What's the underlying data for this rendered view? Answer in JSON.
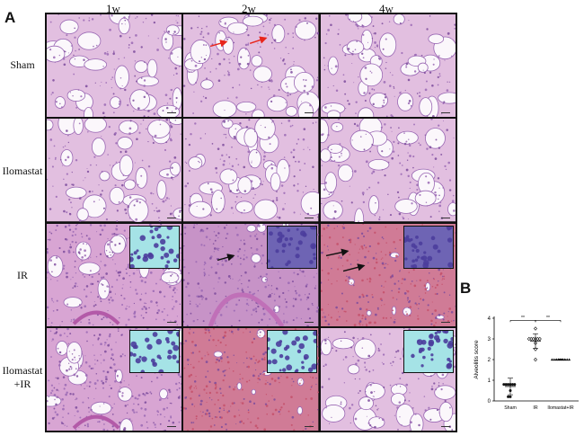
{
  "figure": {
    "panel_a_letter": "A",
    "panel_b_letter": "B",
    "columns": [
      "1w",
      "2w",
      "4w"
    ],
    "rows": [
      "Sham",
      "Ilomastat",
      "IR",
      "Ilomastat\n+IR"
    ]
  },
  "cells": [
    {
      "style": "normal",
      "inset": false,
      "arrows": "none"
    },
    {
      "style": "normal",
      "inset": false,
      "arrows": "red"
    },
    {
      "style": "normal",
      "inset": false,
      "arrows": "none"
    },
    {
      "style": "normal",
      "inset": false,
      "arrows": "none"
    },
    {
      "style": "normal",
      "inset": false,
      "arrows": "none"
    },
    {
      "style": "normal",
      "inset": false,
      "arrows": "none"
    },
    {
      "style": "inflamed",
      "inset": true,
      "arrows": "none"
    },
    {
      "style": "dense",
      "inset": true,
      "arrows": "black-one"
    },
    {
      "style": "hemorrhagic",
      "inset": true,
      "arrows": "black-two"
    },
    {
      "style": "inflamed",
      "inset": true,
      "arrows": "none"
    },
    {
      "style": "hemorrhagic",
      "inset": true,
      "arrows": "none"
    },
    {
      "style": "normal",
      "inset": true,
      "arrows": "none"
    }
  ],
  "colors": {
    "he_pink": "#f4e3ee",
    "he_purple": "#9a68b4",
    "hemorrhage": "#c4506a",
    "inset_bg": "#a5e3e6",
    "nucleus": "#4b3d9c",
    "arrow_red": "#e8251b",
    "arrow_black": "#111111"
  },
  "chart_data": {
    "type": "scatter",
    "title": "",
    "xlabel": "",
    "ylabel": "Alveolitis score",
    "categories": [
      "Sham",
      "IR",
      "Ilomastat+IR"
    ],
    "ylim": [
      0,
      4
    ],
    "yticks": [
      0,
      1,
      2,
      3,
      4
    ],
    "series": [
      {
        "values": [
          0.8,
          0.8,
          0.8,
          0.8,
          0.8,
          0.8,
          0.5,
          0.2,
          0.2
        ]
      },
      {
        "values": [
          3.5,
          3.0,
          3.0,
          3.0,
          3.0,
          3.0,
          3.0,
          2.8,
          2.5,
          2.0
        ]
      },
      {
        "values": [
          2.0,
          2.0,
          2.0,
          2.0,
          2.0,
          2.0,
          2.0,
          2.0,
          2.0
        ]
      }
    ],
    "means": [
      0.7,
      2.9,
      2.0
    ],
    "sd": [
      0.4,
      0.35,
      0.03
    ],
    "markers": [
      "circle",
      "diamond",
      "triangle"
    ],
    "significance": [
      {
        "from": 0,
        "to": 1,
        "label": "**"
      },
      {
        "from": 1,
        "to": 2,
        "label": "**"
      }
    ]
  }
}
